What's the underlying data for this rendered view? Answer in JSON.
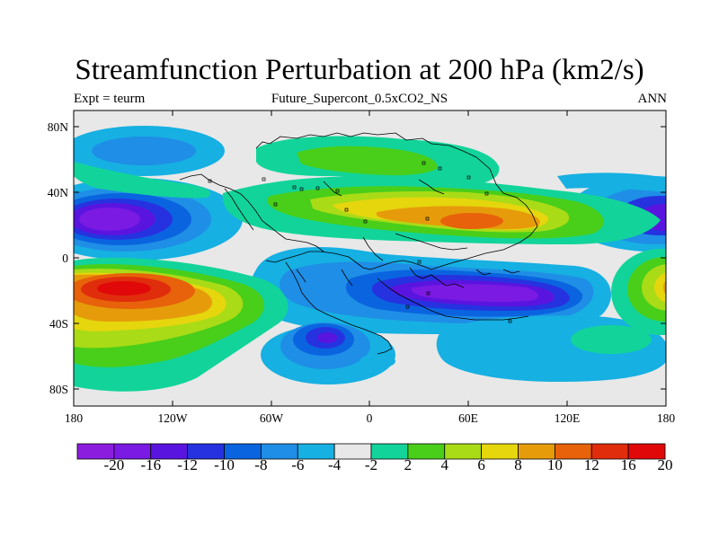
{
  "header": {
    "title": "Streamfunction Perturbation at 200 hPa (km2/s)",
    "left_subtitle": "Expt = teurm",
    "center_subtitle": "Future_Supercont_0.5xCO2_NS",
    "right_subtitle": "ANN"
  },
  "map": {
    "projection": "cylindrical-equidistant",
    "lon_range": [
      -180,
      180
    ],
    "lat_range": [
      -90,
      90
    ],
    "background_color": "#e8e8e8",
    "x_tick_labels": [
      "180",
      "120W",
      "60W",
      "0",
      "60E",
      "120E",
      "180"
    ],
    "y_tick_labels": [
      "80N",
      "40N",
      "0",
      "40S",
      "80S"
    ]
  },
  "colorbar": {
    "colors": [
      "#8b1ddf",
      "#7a1ae2",
      "#5a14df",
      "#2632e0",
      "#0a64df",
      "#1f8ee6",
      "#16b0e2",
      "#e8e8e8",
      "#12d49a",
      "#49ce1a",
      "#a9db17",
      "#e5d60e",
      "#e69c0a",
      "#e7620a",
      "#e02d0c",
      "#e1080a"
    ],
    "labels": [
      "-20",
      "-16",
      "-12",
      "-10",
      "-8",
      "-6",
      "-4",
      "-2",
      "2",
      "4",
      "6",
      "8",
      "10",
      "12",
      "16",
      "20"
    ]
  }
}
